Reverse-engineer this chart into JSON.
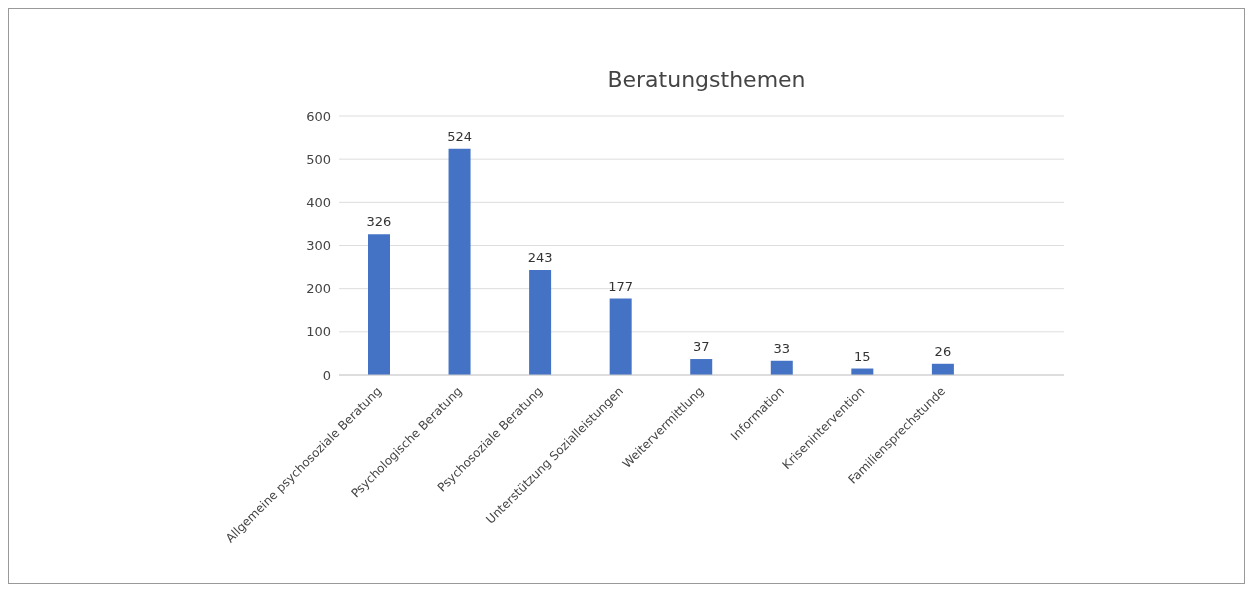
{
  "chart_data": {
    "type": "bar",
    "title": "Beratungsthemen",
    "categories": [
      "Allgemeine psychosoziale Beratung",
      "Psychologische Beratung",
      "Psychosoziale Beratung",
      "Unterstützung Sozialleistungen",
      "Weitervermittlung",
      "Information",
      "Krisenintervention",
      "Familiensprechstunde",
      null
    ],
    "values": [
      326,
      524,
      243,
      177,
      37,
      33,
      15,
      26,
      null
    ],
    "color": "#4472c4",
    "ylim": [
      0,
      600
    ],
    "yticks": [
      0,
      100,
      200,
      300,
      400,
      500,
      600
    ],
    "grid": "y",
    "data_labels": true
  }
}
